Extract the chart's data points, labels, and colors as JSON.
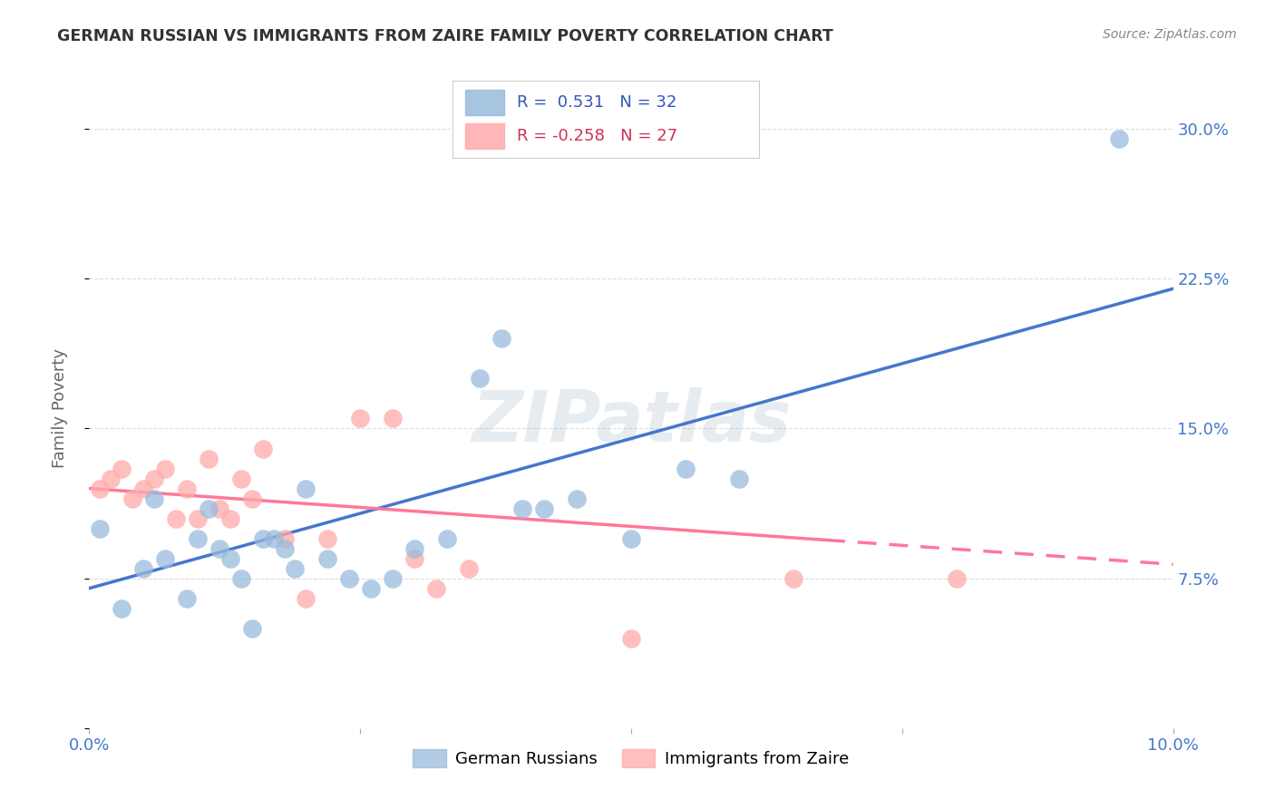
{
  "title": "GERMAN RUSSIAN VS IMMIGRANTS FROM ZAIRE FAMILY POVERTY CORRELATION CHART",
  "source": "Source: ZipAtlas.com",
  "xlabel_blue": "German Russians",
  "xlabel_pink": "Immigrants from Zaire",
  "ylabel": "Family Poverty",
  "watermark": "ZIPatlas",
  "blue_R": 0.531,
  "blue_N": 32,
  "pink_R": -0.258,
  "pink_N": 27,
  "xlim": [
    0.0,
    0.1
  ],
  "ylim": [
    0.0,
    0.32
  ],
  "xticks": [
    0.0,
    0.025,
    0.05,
    0.075,
    0.1
  ],
  "xtick_labels": [
    "0.0%",
    "",
    "",
    "",
    "10.0%"
  ],
  "yticks": [
    0.0,
    0.075,
    0.15,
    0.225,
    0.3
  ],
  "ytick_labels": [
    "",
    "7.5%",
    "15.0%",
    "22.5%",
    "30.0%"
  ],
  "blue_color": "#99BBDD",
  "pink_color": "#FFAAAA",
  "blue_line_color": "#4477CC",
  "pink_line_color": "#FF7799",
  "tick_color": "#4477CC",
  "grid_color": "#DDDDDD",
  "background_color": "#FFFFFF",
  "blue_x": [
    0.001,
    0.003,
    0.005,
    0.006,
    0.007,
    0.009,
    0.01,
    0.011,
    0.012,
    0.013,
    0.014,
    0.015,
    0.016,
    0.017,
    0.018,
    0.019,
    0.02,
    0.022,
    0.024,
    0.026,
    0.028,
    0.03,
    0.033,
    0.036,
    0.038,
    0.04,
    0.042,
    0.045,
    0.05,
    0.055,
    0.06,
    0.095
  ],
  "blue_y": [
    0.1,
    0.06,
    0.08,
    0.115,
    0.085,
    0.065,
    0.095,
    0.11,
    0.09,
    0.085,
    0.075,
    0.05,
    0.095,
    0.095,
    0.09,
    0.08,
    0.12,
    0.085,
    0.075,
    0.07,
    0.075,
    0.09,
    0.095,
    0.175,
    0.195,
    0.11,
    0.11,
    0.115,
    0.095,
    0.13,
    0.125,
    0.295
  ],
  "pink_x": [
    0.001,
    0.002,
    0.003,
    0.004,
    0.005,
    0.006,
    0.007,
    0.008,
    0.009,
    0.01,
    0.011,
    0.012,
    0.013,
    0.014,
    0.015,
    0.016,
    0.018,
    0.02,
    0.022,
    0.025,
    0.028,
    0.03,
    0.032,
    0.035,
    0.05,
    0.065,
    0.08
  ],
  "pink_y": [
    0.12,
    0.125,
    0.13,
    0.115,
    0.12,
    0.125,
    0.13,
    0.105,
    0.12,
    0.105,
    0.135,
    0.11,
    0.105,
    0.125,
    0.115,
    0.14,
    0.095,
    0.065,
    0.095,
    0.155,
    0.155,
    0.085,
    0.07,
    0.08,
    0.045,
    0.075,
    0.075
  ],
  "blue_line_x0": 0.0,
  "blue_line_x1": 0.1,
  "blue_line_y0": 0.07,
  "blue_line_y1": 0.22,
  "pink_line_x0": 0.0,
  "pink_line_x1": 0.1,
  "pink_line_y0": 0.12,
  "pink_line_y1": 0.082
}
